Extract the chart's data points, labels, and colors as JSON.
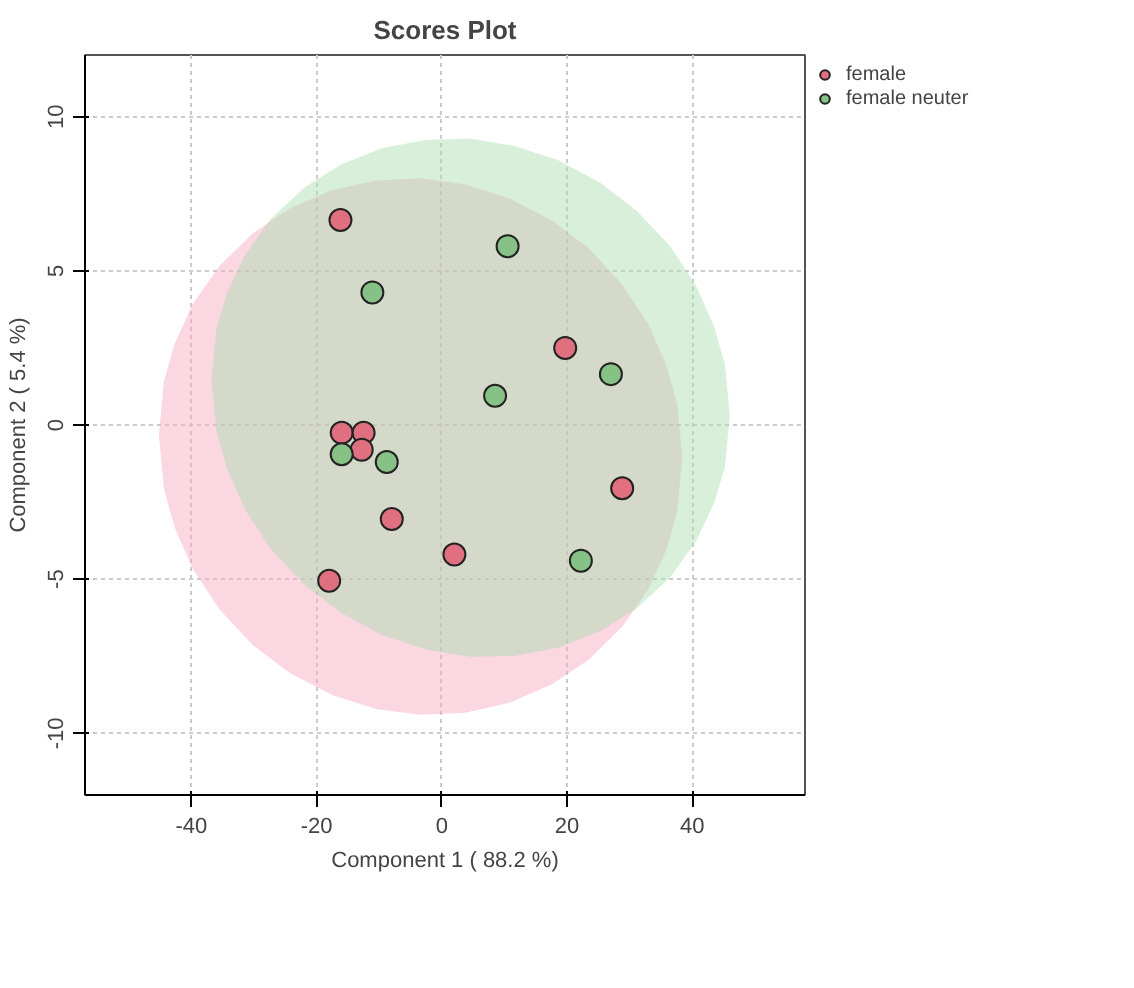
{
  "chart_data": {
    "type": "scatter",
    "title": "Scores Plot",
    "xlabel": "Component 1 ( 88.2 %)",
    "ylabel": "Component 2 ( 5.4 %)",
    "xlim": [
      -57,
      58
    ],
    "ylim": [
      -12,
      12
    ],
    "xticks": [
      -40,
      -20,
      0,
      20,
      40
    ],
    "yticks": [
      -10,
      -5,
      0,
      5,
      10
    ],
    "grid": true,
    "legend": "top right",
    "marker": "circle",
    "series": [
      {
        "type": "area",
        "marker": "none",
        "color": "#f4a7bd",
        "x": [
          -45.2,
          -44.4,
          -42.7,
          -39.8,
          -35.6,
          -30.2,
          -24.3,
          -17.6,
          -10.5,
          -3.4,
          3.7,
          10.8,
          17.5,
          23.4,
          28.8,
          33.0,
          35.9,
          37.6,
          38.4,
          37.6,
          35.9,
          33.0,
          28.8,
          23.4,
          17.5,
          10.8,
          3.7,
          -3.4,
          -10.5,
          -17.6,
          -24.3,
          -30.2,
          -35.6,
          -39.8,
          -42.7,
          -44.4
        ],
        "values": [
          -0.32,
          1.4,
          2.63,
          3.92,
          5.14,
          6.22,
          7.02,
          7.61,
          7.93,
          8.0,
          7.81,
          7.35,
          6.64,
          5.74,
          4.56,
          3.26,
          1.91,
          0.66,
          -1.08,
          -2.8,
          -4.03,
          -5.32,
          -6.54,
          -7.62,
          -8.42,
          -9.01,
          -9.33,
          -9.4,
          -9.21,
          -8.75,
          -8.04,
          -7.14,
          -5.96,
          -4.66,
          -3.31,
          -2.06
        ]
      },
      {
        "type": "area",
        "marker": "none",
        "color": "#a8dcae",
        "x": [
          -36.8,
          -36.0,
          -34.3,
          -31.4,
          -27.3,
          -21.9,
          -16.1,
          -9.5,
          -2.4,
          4.6,
          11.6,
          18.7,
          25.3,
          31.1,
          36.5,
          40.6,
          43.5,
          45.2,
          46.0,
          45.2,
          43.5,
          40.6,
          36.5,
          31.1,
          25.3,
          18.7,
          11.6,
          4.6,
          -2.4,
          -9.5,
          -16.1,
          -21.9,
          -27.3,
          -31.4,
          -34.3,
          -36.0
        ],
        "values": [
          1.47,
          3.13,
          4.29,
          5.53,
          6.69,
          7.71,
          8.45,
          8.98,
          9.25,
          9.28,
          9.05,
          8.58,
          7.86,
          6.95,
          5.79,
          4.51,
          3.19,
          1.97,
          0.29,
          -1.37,
          -2.53,
          -3.77,
          -4.93,
          -5.95,
          -6.68,
          -7.22,
          -7.49,
          -7.52,
          -7.29,
          -6.82,
          -6.09,
          -5.19,
          -4.03,
          -2.75,
          -1.43,
          -0.21
        ]
      },
      {
        "name": "female",
        "color": "#e0707f",
        "x": [
          -16.2,
          19.7,
          -16.0,
          -12.5,
          -12.8,
          -8.0,
          2.0,
          -18.0,
          28.8
        ],
        "values": [
          6.65,
          2.5,
          -0.25,
          -0.25,
          -0.8,
          -3.05,
          -4.2,
          -5.05,
          -2.05
        ]
      },
      {
        "name": "female neuter",
        "color": "#86c286",
        "x": [
          10.5,
          -11.1,
          8.5,
          27.0,
          -16.0,
          -8.8,
          22.2
        ],
        "values": [
          5.8,
          4.3,
          0.95,
          1.65,
          -0.95,
          -1.2,
          -4.4
        ]
      }
    ]
  }
}
